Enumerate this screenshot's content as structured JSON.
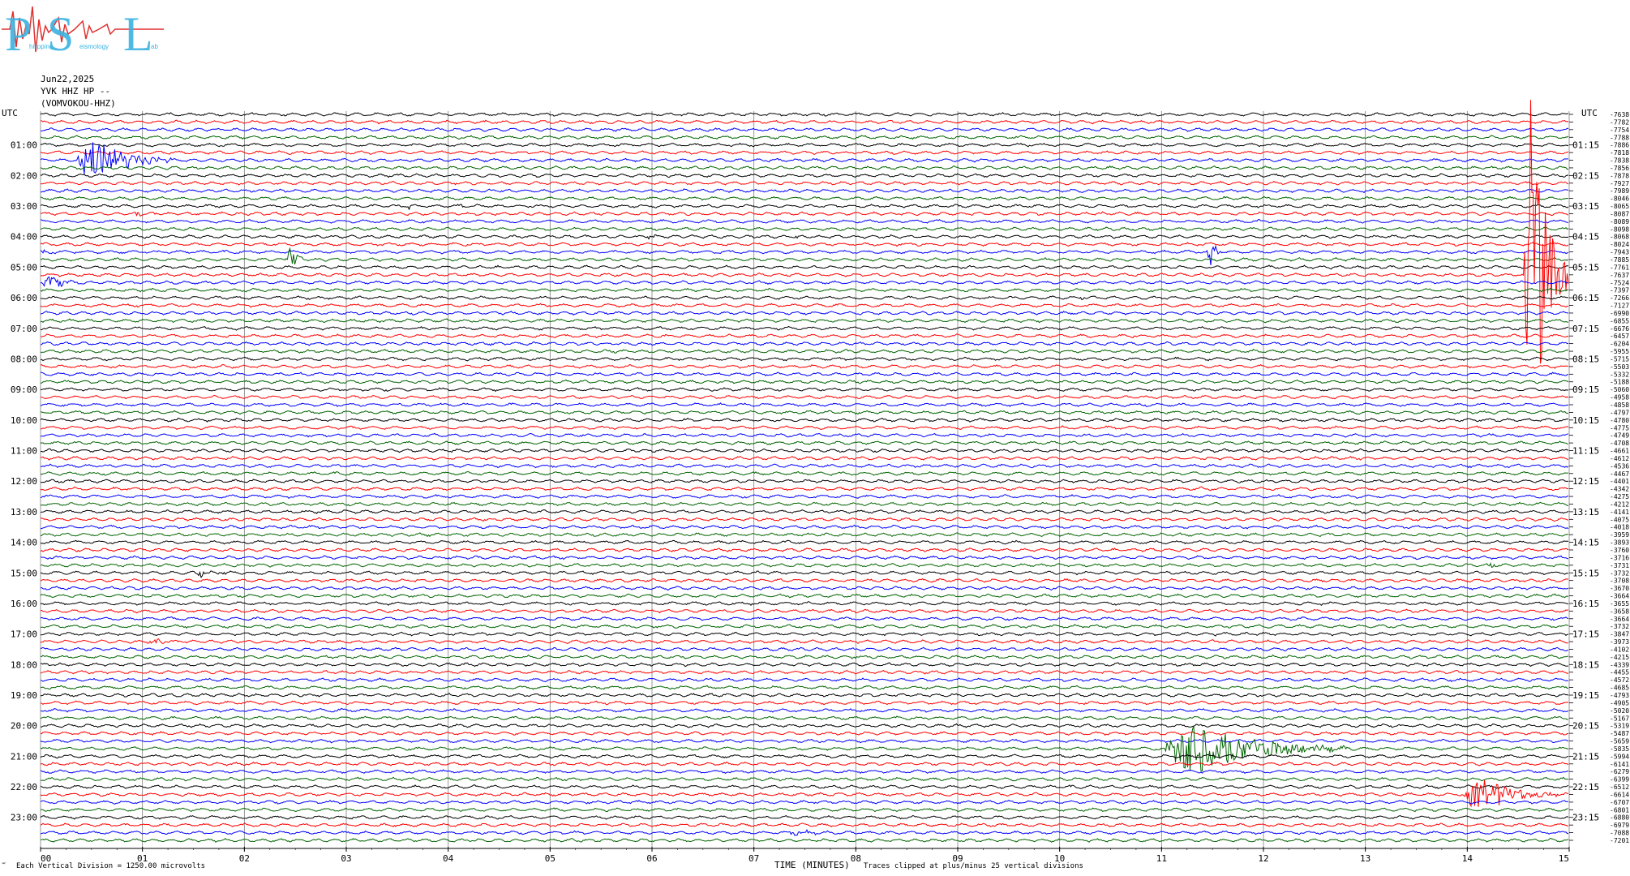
{
  "logo": {
    "letters": [
      "P",
      "S",
      "L"
    ],
    "small_words": [
      "hilippine",
      "eismology",
      "ab"
    ]
  },
  "header": {
    "date": "Jun22,2025",
    "channel": "YVK HHZ HP --",
    "station": "(VOMVOKOU-HHZ)"
  },
  "colors": {
    "series": [
      "#000000",
      "#ff0000",
      "#0000ff",
      "#006400"
    ],
    "grid": "#808080"
  },
  "footer": {
    "left_mark": "‴",
    "division_note": "Each Vertical Division = 1250.00 microvolts",
    "xaxis_title": "TIME (MINUTES)",
    "clip_note": "Traces clipped at plus/minus 25 vertical divisions"
  },
  "chart_data": {
    "type": "line",
    "title": "",
    "xlabel": "TIME (MINUTES)",
    "ylabel": "UTC",
    "xlim": [
      0,
      15
    ],
    "x_ticks": [
      "00",
      "01",
      "02",
      "03",
      "04",
      "05",
      "06",
      "07",
      "08",
      "09",
      "10",
      "11",
      "12",
      "13",
      "14",
      "15"
    ],
    "left_axis_title": "UTC",
    "right_axis_title": "UTC",
    "left_time_labels": [
      "01:00",
      "02:00",
      "03:00",
      "04:00",
      "05:00",
      "06:00",
      "07:00",
      "08:00",
      "09:00",
      "10:00",
      "11:00",
      "12:00",
      "13:00",
      "14:00",
      "15:00",
      "16:00",
      "17:00",
      "18:00",
      "19:00",
      "20:00",
      "21:00",
      "22:00",
      "23:00"
    ],
    "right_time_labels": [
      "01:15",
      "02:15",
      "03:15",
      "04:15",
      "05:15",
      "06:15",
      "07:15",
      "08:15",
      "09:15",
      "10:15",
      "11:15",
      "12:15",
      "13:15",
      "14:15",
      "15:15",
      "16:15",
      "17:15",
      "18:15",
      "19:15",
      "20:15",
      "21:15",
      "22:15",
      "23:15"
    ],
    "row_count": 96,
    "rows_per_hour": 4,
    "color_cycle": [
      "black",
      "red",
      "blue",
      "green"
    ],
    "trace_offsets": [
      "-7638",
      "-7782",
      "-7754",
      "-7788",
      "-7886",
      "-7818",
      "-7838",
      "-7856",
      "-7878",
      "-7927",
      "-7989",
      "-8046",
      "-8065",
      "-8087",
      "-8089",
      "-8098",
      "-8068",
      "-8024",
      "-7943",
      "-7885",
      "-7761",
      "-7637",
      "-7524",
      "-7397",
      "-7266",
      "-7127",
      "-6990",
      "-6855",
      "-6676",
      "-6457",
      "-6204",
      "-5955",
      "-5715",
      "-5503",
      "-5332",
      "-5188",
      "-5060",
      "-4958",
      "-4858",
      "-4797",
      "-4780",
      "-4775",
      "-4749",
      "-4708",
      "-4661",
      "-4612",
      "-4536",
      "-4467",
      "-4401",
      "-4342",
      "-4275",
      "-4212",
      "-4141",
      "-4075",
      "-4018",
      "-3959",
      "-3893",
      "-3760",
      "-3716",
      "-3731",
      "-3732",
      "-3708",
      "-3670",
      "-3664",
      "-3655",
      "-3658",
      "-3664",
      "-3732",
      "-3847",
      "-3973",
      "-4102",
      "-4215",
      "-4339",
      "-4455",
      "-4572",
      "-4685",
      "-4793",
      "-4905",
      "-5020",
      "-5167",
      "-5319",
      "-5487",
      "-5659",
      "-5835",
      "-5994",
      "-6141",
      "-6279",
      "-6399",
      "-6512",
      "-6614",
      "-6707",
      "-6801",
      "-6880",
      "-6979",
      "-7088",
      "-7201"
    ],
    "events": [
      {
        "row": 6,
        "start_min": 0.35,
        "end_min": 1.3,
        "peak_divisions": 3.2,
        "color": "black"
      },
      {
        "row": 12,
        "start_min": 3.6,
        "end_min": 3.7,
        "peak_divisions": 0.4,
        "color": "black"
      },
      {
        "row": 12,
        "start_min": 4.1,
        "end_min": 4.3,
        "peak_divisions": 0.3,
        "color": "black"
      },
      {
        "row": 13,
        "start_min": 0.9,
        "end_min": 1.2,
        "peak_divisions": 0.3,
        "color": "red"
      },
      {
        "row": 16,
        "start_min": 5.95,
        "end_min": 6.1,
        "peak_divisions": 0.4,
        "color": "black"
      },
      {
        "row": 16,
        "start_min": 7.4,
        "end_min": 7.5,
        "peak_divisions": 0.3,
        "color": "black"
      },
      {
        "row": 18,
        "start_min": 0.0,
        "end_min": 0.2,
        "peak_divisions": 0.5,
        "color": "blue"
      },
      {
        "row": 18,
        "start_min": 11.45,
        "end_min": 11.6,
        "peak_divisions": 2.5,
        "color": "blue"
      },
      {
        "row": 19,
        "start_min": 2.4,
        "end_min": 2.6,
        "peak_divisions": 2.2,
        "color": "green"
      },
      {
        "row": 22,
        "start_min": 0.0,
        "end_min": 0.5,
        "peak_divisions": 0.8,
        "color": "blue"
      },
      {
        "row": 24,
        "start_min": 10.2,
        "end_min": 10.3,
        "peak_divisions": 0.3,
        "color": "black"
      },
      {
        "row": 21,
        "start_min": 14.55,
        "end_min": 15.0,
        "peak_divisions": 25,
        "color": "red"
      },
      {
        "row": 60,
        "start_min": 1.5,
        "end_min": 2.0,
        "peak_divisions": 0.4,
        "color": "black"
      },
      {
        "row": 59,
        "start_min": 14.2,
        "end_min": 14.4,
        "peak_divisions": 0.3,
        "color": "green"
      },
      {
        "row": 69,
        "start_min": 1.0,
        "end_min": 1.9,
        "peak_divisions": 0.2,
        "color": "red"
      },
      {
        "row": 83,
        "start_min": 11.0,
        "end_min": 12.9,
        "peak_divisions": 3.5,
        "color": "green"
      },
      {
        "row": 89,
        "start_min": 13.95,
        "end_min": 14.9,
        "peak_divisions": 2.8,
        "color": "red"
      },
      {
        "row": 94,
        "start_min": 7.3,
        "end_min": 7.9,
        "peak_divisions": 0.3,
        "color": "blue"
      }
    ]
  }
}
